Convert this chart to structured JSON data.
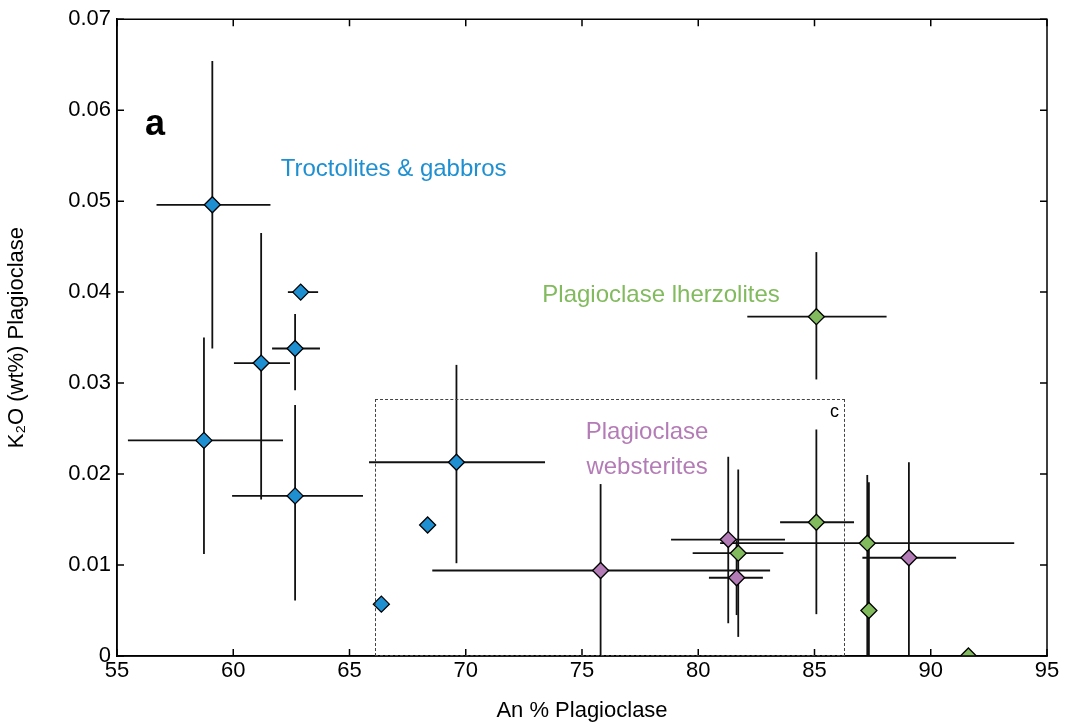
{
  "chart_data": {
    "type": "scatter",
    "xlabel": "An % Plagioclase",
    "ylabel": "K₂O (wt%) Plagioclase",
    "xlim": [
      55,
      95
    ],
    "xticks": [
      55,
      60,
      65,
      70,
      75,
      80,
      85,
      90,
      95
    ],
    "ylim": [
      0,
      0.07
    ],
    "yticks": [
      0,
      0.01,
      0.02,
      0.03,
      0.04,
      0.05,
      0.06,
      0.07
    ],
    "grid": false,
    "legend": false,
    "marker": "diamond",
    "annotations": [
      "a",
      "c"
    ],
    "series": [
      {
        "name": "Troctolites & gabbros",
        "color": "#1e90d2",
        "x": [
          59.1,
          62.9,
          62.66,
          61.2,
          58.74,
          62.66,
          69.6,
          68.36,
          66.37
        ],
        "values": [
          0.0496,
          0.04,
          0.0338,
          0.0322,
          0.0237,
          0.0176,
          0.0213,
          0.0144,
          0.0057
        ],
        "errors": [
          [
            0.0338,
            0.0654
          ],
          [
            0.0393,
            0.0407
          ],
          [
            0.0292,
            0.0376
          ],
          [
            0.0172,
            0.0465
          ],
          [
            0.0112,
            0.035
          ],
          [
            0.0061,
            0.0276
          ],
          [
            0.0102,
            0.032
          ],
          null,
          null
        ],
        "xerrors": [
          [
            56.7,
            61.6
          ],
          [
            62.35,
            63.65
          ],
          [
            61.67,
            63.73
          ],
          [
            60.03,
            62.44
          ],
          [
            55.47,
            62.14
          ],
          [
            59.95,
            65.58
          ],
          [
            65.84,
            73.41
          ],
          null,
          null
        ]
      },
      {
        "name": "Plagioclase lherzolites",
        "color": "#82ba5e",
        "x": [
          81.72,
          85.08,
          85.08,
          87.27,
          87.34,
          91.62
        ],
        "values": [
          0.0113,
          0.0147,
          0.0373,
          0.0124,
          0.005,
          0
        ],
        "errors": [
          [
            0.0021,
            0.0205
          ],
          [
            0.0046,
            0.0249
          ],
          [
            0.0304,
            0.0444
          ],
          [
            0,
            0.0199
          ],
          [
            0,
            0.0191
          ],
          null
        ],
        "xerrors": [
          [
            79.76,
            83.66
          ],
          [
            83.52,
            86.7
          ],
          [
            82.11,
            88.1
          ],
          [
            80.94,
            93.59
          ],
          null,
          null
        ]
      },
      {
        "name": "Plagioclase websterites",
        "color": "#b47cb6",
        "x": [
          75.8,
          81.29,
          81.65,
          89.06
        ],
        "values": [
          0.0094,
          0.0128,
          0.0086,
          0.0108
        ],
        "errors": [
          [
            0,
            0.0189
          ],
          [
            0.0036,
            0.0219
          ],
          [
            0.0045,
            0.0127
          ],
          [
            0,
            0.0213
          ]
        ],
        "xerrors": [
          [
            68.56,
            83.09
          ],
          [
            78.83,
            83.73
          ],
          [
            80.46,
            82.78
          ],
          [
            87.06,
            91.09
          ]
        ]
      }
    ]
  }
}
